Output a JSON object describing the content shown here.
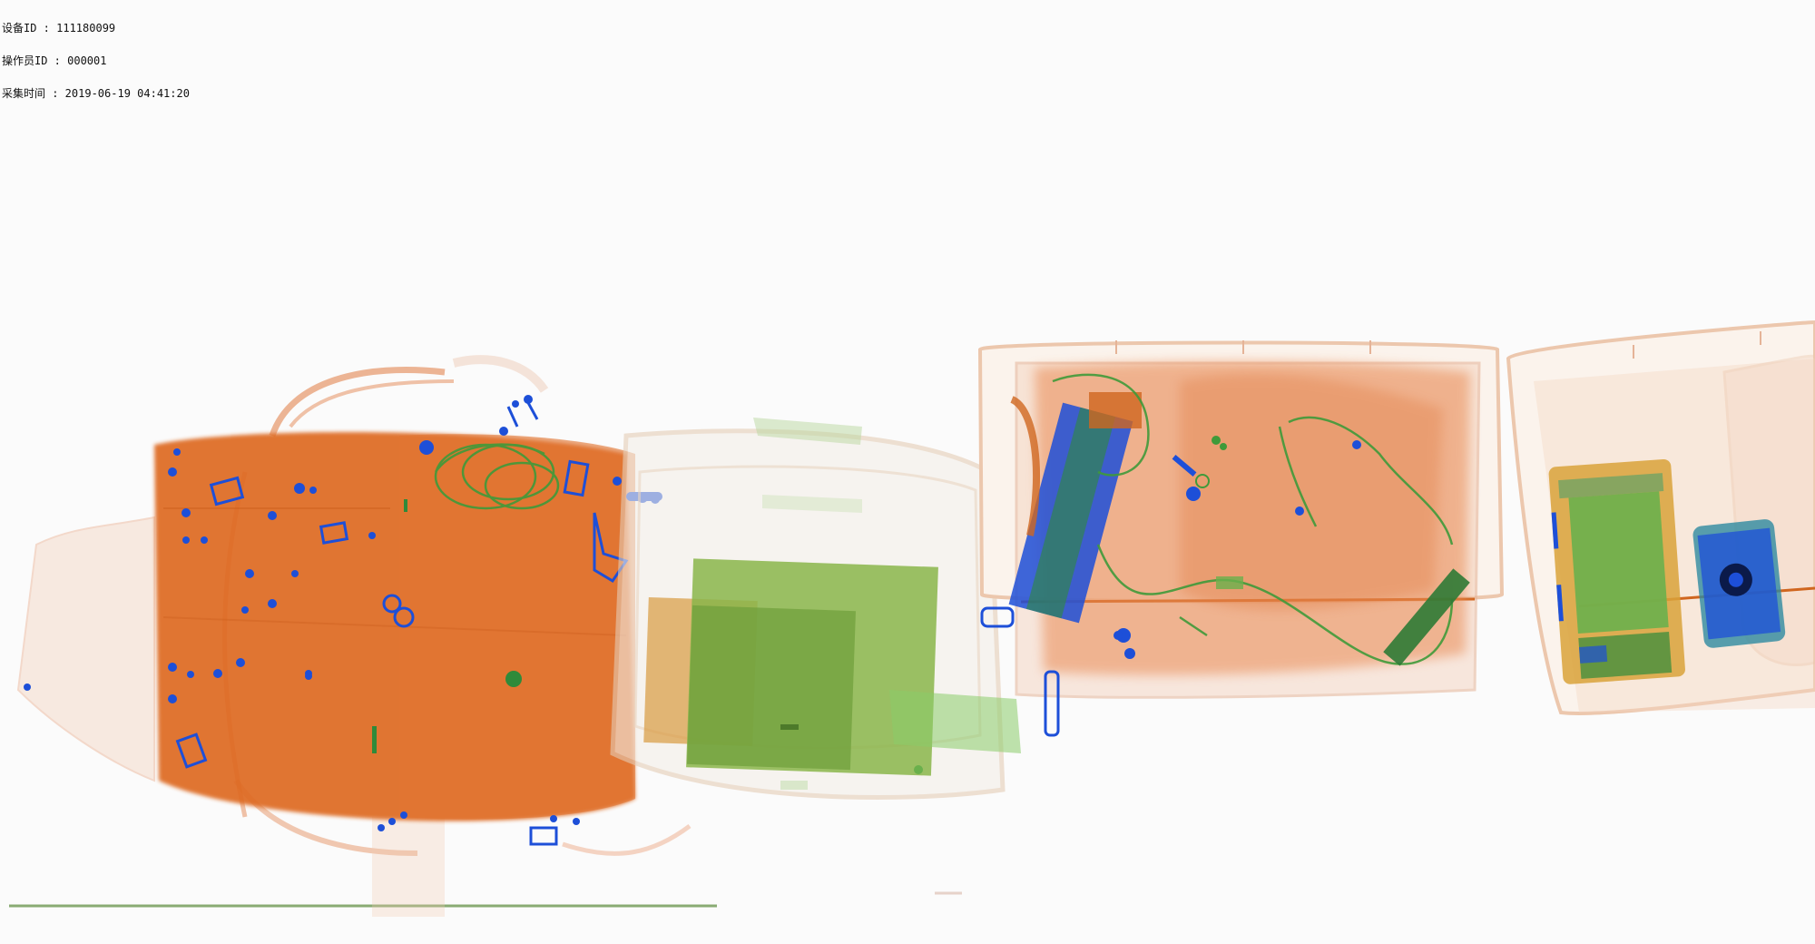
{
  "scan_info": {
    "device_id": "设备ID : 111180099",
    "operator_id": "操作员ID : 000001",
    "capture_time": "采集时间 : 2019-06-19 04:41:20"
  },
  "colors": {
    "background": "#fbfbfb",
    "organic": "#e06a2a",
    "organic_dense": "#de6a22",
    "inorganic": "#6ab04c",
    "metal": "#1d4fd8",
    "container_outline": "#e9b79a"
  },
  "objects": [
    {
      "name": "backpack",
      "material": "organic"
    },
    {
      "name": "suitcase",
      "material": "mixed"
    },
    {
      "name": "tray-1",
      "material": "organic"
    },
    {
      "name": "tray-2",
      "material": "electronics"
    }
  ]
}
